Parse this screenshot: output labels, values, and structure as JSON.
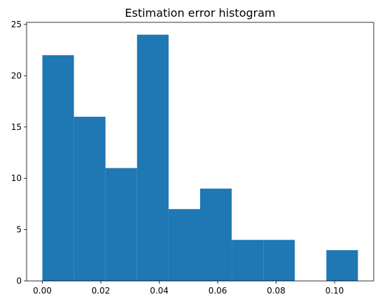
{
  "chart_data": {
    "type": "bar",
    "subtype": "histogram",
    "title": "Estimation error histogram",
    "xlabel": "",
    "ylabel": "",
    "bins": [
      {
        "start": 0.0,
        "end": 0.0108,
        "count": 22
      },
      {
        "start": 0.0108,
        "end": 0.0216,
        "count": 16
      },
      {
        "start": 0.0216,
        "end": 0.0324,
        "count": 11
      },
      {
        "start": 0.0324,
        "end": 0.0432,
        "count": 24
      },
      {
        "start": 0.0432,
        "end": 0.054,
        "count": 7
      },
      {
        "start": 0.054,
        "end": 0.0648,
        "count": 9
      },
      {
        "start": 0.0648,
        "end": 0.0756,
        "count": 4
      },
      {
        "start": 0.0756,
        "end": 0.0864,
        "count": 4
      },
      {
        "start": 0.0864,
        "end": 0.0972,
        "count": 0
      },
      {
        "start": 0.0972,
        "end": 0.108,
        "count": 3
      }
    ],
    "xlim": [
      -0.0054,
      0.1134
    ],
    "ylim": [
      0,
      25.2
    ],
    "xticks": [
      0.0,
      0.02,
      0.04,
      0.06,
      0.08,
      0.1
    ],
    "xtick_labels": [
      "0.00",
      "0.02",
      "0.04",
      "0.06",
      "0.08",
      "0.10"
    ],
    "yticks": [
      0,
      5,
      10,
      15,
      20,
      25
    ],
    "ytick_labels": [
      "0",
      "5",
      "10",
      "15",
      "20",
      "25"
    ],
    "bar_color": "#1f77b4",
    "grid": false,
    "legend": "none"
  }
}
